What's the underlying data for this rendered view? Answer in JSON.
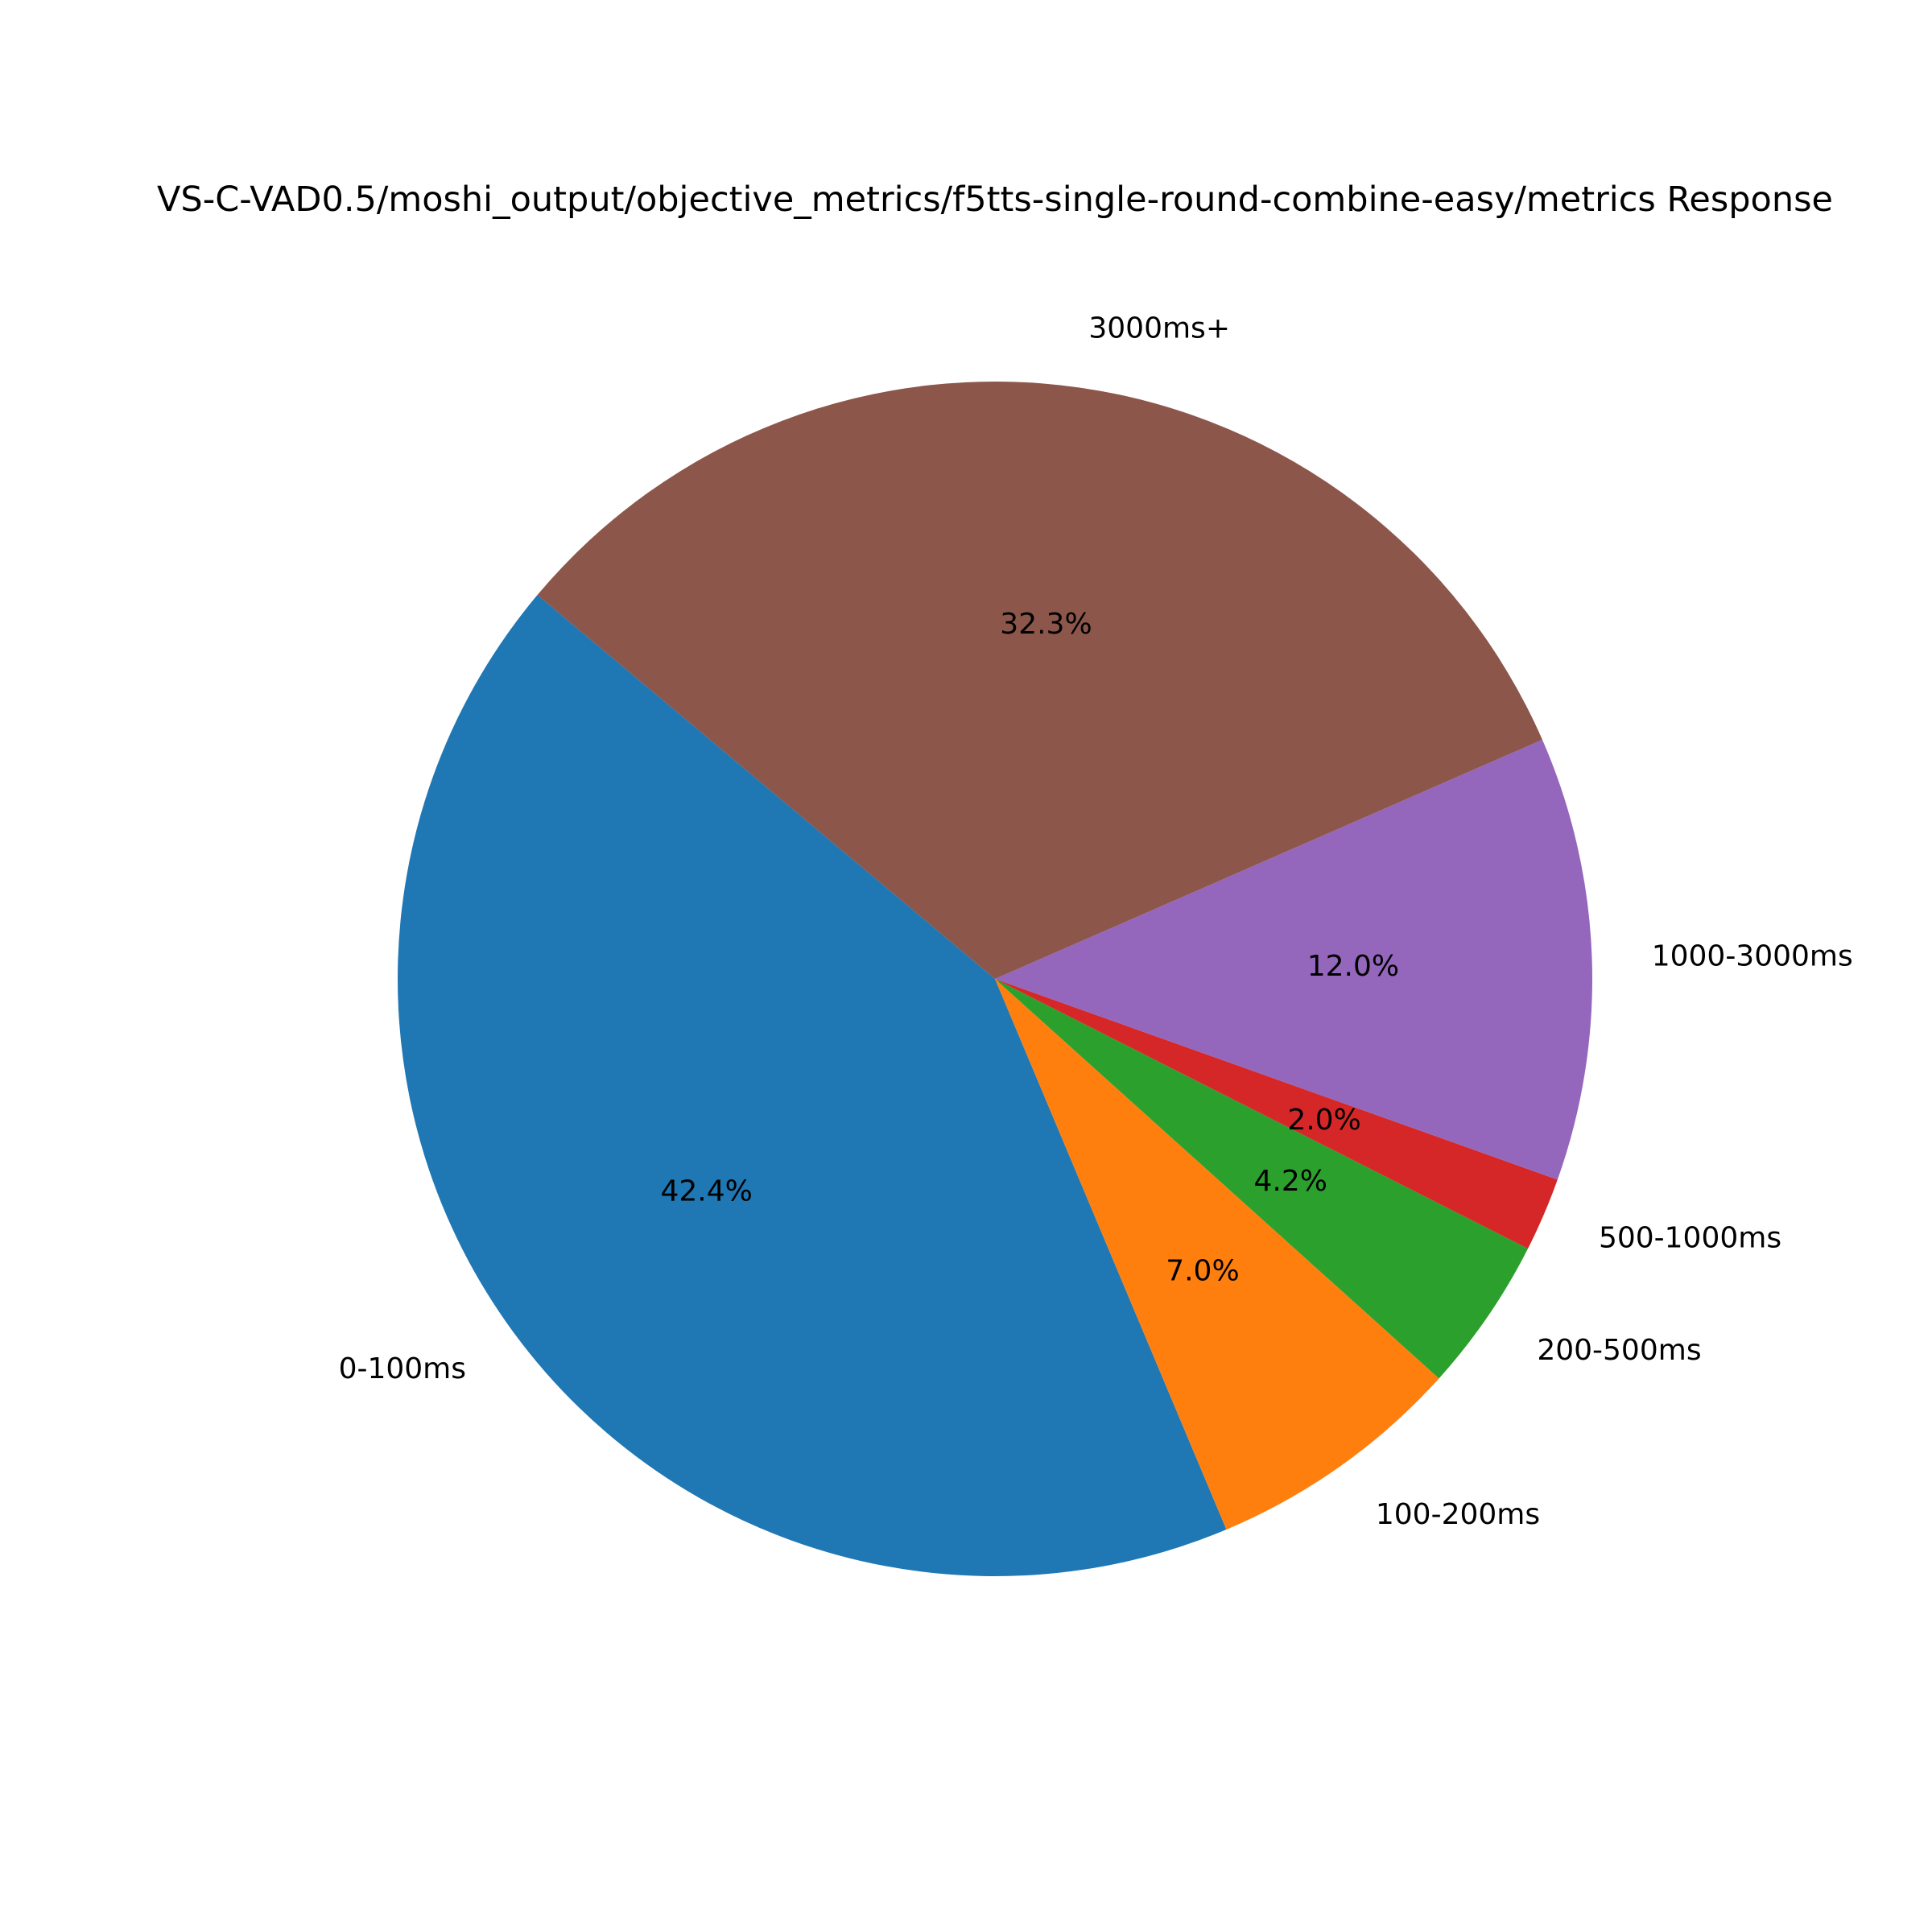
{
  "chart_data": {
    "type": "pie",
    "title": "VS-C-VAD0.5/moshi_output/objective_metrics/f5tts-single-round-combine-easy/metrics Response",
    "start_angle_deg": 140,
    "direction": "counterclockwise",
    "slices": [
      {
        "label": "0-100ms",
        "value": 42.4,
        "pct_label": "42.4%",
        "color": "#1f77b4"
      },
      {
        "label": "100-200ms",
        "value": 7.0,
        "pct_label": "7.0%",
        "color": "#ff7f0e"
      },
      {
        "label": "200-500ms",
        "value": 4.2,
        "pct_label": "4.2%",
        "color": "#2ca02c"
      },
      {
        "label": "500-1000ms",
        "value": 2.0,
        "pct_label": "2.0%",
        "color": "#d62728"
      },
      {
        "label": "1000-3000ms",
        "value": 12.0,
        "pct_label": "12.0%",
        "color": "#9467bd"
      },
      {
        "label": "3000ms+",
        "value": 32.3,
        "pct_label": "32.3%",
        "color": "#8c564b"
      }
    ]
  }
}
